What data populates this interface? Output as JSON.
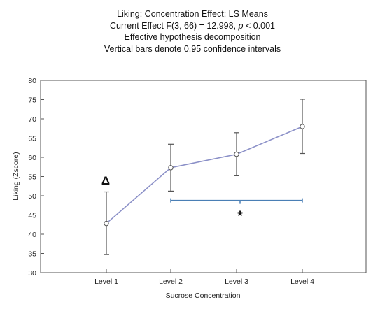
{
  "chart_data": {
    "type": "line",
    "title": "Liking: Concentration Effect; LS Means",
    "subtitle_lines": {
      "effect_prefix": "Current Effect F(3, 66) = 12.998, ",
      "effect_p": "p",
      "effect_suffix": " < 0.001",
      "line3": "Effective hypothesis decomposition",
      "line4": "Vertical bars denote 0.95 confidence intervals"
    },
    "xlabel": "Sucrose Concentration",
    "ylabel": "Liking (Zscore)",
    "categories": [
      "Level 1",
      "Level 2",
      "Level 3",
      "Level 4"
    ],
    "series": [
      {
        "values": [
          42.8,
          57.3,
          60.8,
          68.0
        ],
        "ci_low": [
          34.7,
          51.2,
          55.2,
          61.0
        ],
        "ci_high": [
          51.0,
          63.4,
          66.4,
          75.1
        ]
      }
    ],
    "ylim": [
      30,
      80
    ],
    "yticks": [
      30,
      35,
      40,
      45,
      50,
      55,
      60,
      65,
      70,
      75,
      80
    ],
    "grid": false,
    "annotations": {
      "delta": {
        "text": "Δ",
        "category": "Level 1",
        "y": 54
      },
      "bracket": {
        "from": "Level 2",
        "to": "Level 4",
        "y": 48.8,
        "label": "*"
      }
    },
    "colors": {
      "line": "#8a8fc7",
      "errorbar": "#555555",
      "bracket": "#4a7fb5",
      "marker_fill": "#ffffff",
      "marker_stroke": "#8a8fc7"
    }
  }
}
